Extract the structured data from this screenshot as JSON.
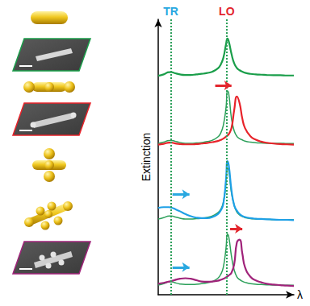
{
  "chart_data": {
    "type": "line",
    "x_label": "λ",
    "y_label": "Extinction",
    "tick_labels": false,
    "xlim": [
      0,
      100
    ],
    "ylim": [
      0,
      100
    ],
    "x": [
      0,
      4,
      8,
      10,
      12,
      16,
      20,
      24,
      28,
      32,
      36,
      40,
      44,
      46,
      48,
      50,
      51,
      52,
      54,
      56,
      58,
      60,
      62,
      64,
      68,
      72,
      76,
      80,
      85,
      90,
      95,
      100
    ],
    "series": [
      {
        "color": "#1a9e4a",
        "line_style": "solid",
        "values": [
          79.5,
          80,
          80.8,
          80.8,
          80.5,
          80,
          79.8,
          79.8,
          80,
          80.2,
          80.5,
          81,
          82.2,
          83.5,
          86,
          91,
          93,
          92,
          87.5,
          84,
          82.3,
          81.5,
          81,
          80.6,
          80.2,
          80,
          79.9,
          79.8,
          79.7,
          79.7,
          79.6,
          79.6
        ]
      },
      {
        "color": "#2ca05a",
        "line_style": "thin",
        "values": [
          55,
          55.4,
          56,
          56,
          55.8,
          55.3,
          55,
          55,
          55.1,
          55.3,
          55.6,
          56.1,
          57.3,
          58.6,
          61.5,
          68,
          74,
          73,
          64,
          59.5,
          57.5,
          56.7,
          56.2,
          55.8,
          55.4,
          55.2,
          55.1,
          55,
          55,
          55,
          54.9,
          54.9
        ]
      },
      {
        "color": "#e8232a",
        "line_style": "solid",
        "values": [
          54.5,
          54.8,
          55.2,
          55.2,
          55,
          54.7,
          54.6,
          54.6,
          54.7,
          54.9,
          55.1,
          55.4,
          55.8,
          56.2,
          56.7,
          57.4,
          57.8,
          58.3,
          60.5,
          67,
          72,
          69.5,
          64,
          60.5,
          57.5,
          56.3,
          55.6,
          55.2,
          54.9,
          54.7,
          54.6,
          54.5
        ]
      },
      {
        "color": "#2ca05a",
        "line_style": "thin",
        "values": [
          27.5,
          28,
          28.6,
          28.6,
          28.3,
          27.8,
          27.5,
          27.5,
          27.6,
          27.8,
          28.1,
          28.6,
          29.8,
          31,
          33.5,
          41,
          46,
          45,
          37,
          32.5,
          30,
          29,
          28.4,
          28,
          27.6,
          27.5,
          27.4,
          27.4,
          27.3,
          27.3,
          27.3,
          27.3
        ]
      },
      {
        "color": "#1ea0e6",
        "line_style": "solid",
        "values": [
          31.5,
          31.8,
          31.8,
          31.6,
          31.2,
          30.3,
          29.3,
          28.5,
          28,
          27.8,
          27.8,
          28.2,
          29.3,
          30.5,
          33,
          42,
          48.5,
          47,
          38,
          32.5,
          30.5,
          29.3,
          28.6,
          28.2,
          27.8,
          27.6,
          27.5,
          27.4,
          27.3,
          27.2,
          27.2,
          27.1
        ]
      },
      {
        "color": "#2ca05a",
        "line_style": "thin",
        "values": [
          3.5,
          4,
          4.7,
          4.7,
          4.4,
          3.9,
          3.7,
          3.7,
          3.8,
          4,
          4.3,
          4.8,
          6,
          7.3,
          10,
          17,
          22,
          21,
          14,
          9,
          6.5,
          5.5,
          4.9,
          4.5,
          4,
          3.8,
          3.7,
          3.6,
          3.5,
          3.5,
          3.4,
          3.4
        ]
      },
      {
        "color": "#a0237a",
        "line_style": "solid",
        "values": [
          4,
          4.3,
          4.8,
          5,
          5.3,
          5.8,
          6,
          5.8,
          5.3,
          4.8,
          4.7,
          4.8,
          5.1,
          5.4,
          5.8,
          6.3,
          6.6,
          7,
          8,
          11,
          19,
          20,
          15,
          10,
          6.5,
          5.2,
          4.5,
          4,
          3.7,
          3.5,
          3.3,
          3.2
        ]
      }
    ],
    "annotations": [
      {
        "text": "TR",
        "x": 9.3,
        "color": "#29a8e0"
      },
      {
        "text": "LO",
        "x": 50.5,
        "color": "#e3262d"
      }
    ],
    "arrows": [
      {
        "from": [
          42,
          76
        ],
        "to": [
          54,
          76
        ],
        "color": "#e3262d"
      },
      {
        "from": [
          10.5,
          36.5
        ],
        "to": [
          23,
          36.5
        ],
        "color": "#29a8e0"
      },
      {
        "from": [
          10.5,
          10
        ],
        "to": [
          23,
          10
        ],
        "color": "#29a8e0"
      },
      {
        "from": [
          53,
          24
        ],
        "to": [
          62,
          24
        ],
        "color": "#e3262d"
      }
    ]
  }
}
